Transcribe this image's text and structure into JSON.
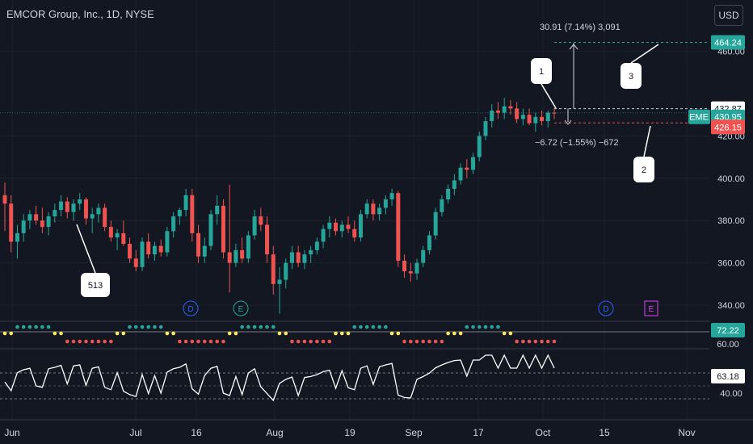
{
  "header": {
    "title": "EMCOR Group, Inc., 1D, NYSE",
    "currency": "USD"
  },
  "colors": {
    "up": "#26a69a",
    "down": "#ef5350",
    "bg": "#131722",
    "grid": "#1e222d",
    "text": "#d1d4dc"
  },
  "chart_data": [
    {
      "type": "candlestick",
      "ylim": [
        332,
        468
      ],
      "y_ticks": [
        "460.00",
        "420.00",
        "400.00",
        "380.00",
        "360.00",
        "340.00"
      ],
      "x_ticks": [
        "Jun",
        "Jul",
        "16",
        "Aug",
        "19",
        "Sep",
        "17",
        "Oct",
        "15",
        "Nov"
      ],
      "symbol": "EME",
      "last_price": "430.95",
      "price_labels": {
        "upper": "464.24",
        "mid": "432.87",
        "lower": "426.15"
      },
      "measure_up": "30.91 (7.14%) 3,091",
      "measure_down": "−6.72 (−1.55%) −672",
      "callouts": [
        "1",
        "2",
        "3",
        "513"
      ],
      "event_markers": [
        "D",
        "E",
        "D",
        "E"
      ],
      "candles": [
        {
          "o": 392,
          "h": 398,
          "l": 375,
          "c": 388
        },
        {
          "o": 388,
          "h": 392,
          "l": 365,
          "c": 370
        },
        {
          "o": 370,
          "h": 378,
          "l": 362,
          "c": 374
        },
        {
          "o": 374,
          "h": 383,
          "l": 370,
          "c": 380
        },
        {
          "o": 380,
          "h": 385,
          "l": 376,
          "c": 383
        },
        {
          "o": 383,
          "h": 387,
          "l": 378,
          "c": 380
        },
        {
          "o": 380,
          "h": 386,
          "l": 374,
          "c": 377
        },
        {
          "o": 377,
          "h": 384,
          "l": 373,
          "c": 382
        },
        {
          "o": 382,
          "h": 388,
          "l": 379,
          "c": 385
        },
        {
          "o": 385,
          "h": 392,
          "l": 382,
          "c": 389
        },
        {
          "o": 389,
          "h": 391,
          "l": 381,
          "c": 384
        },
        {
          "o": 384,
          "h": 390,
          "l": 380,
          "c": 388
        },
        {
          "o": 388,
          "h": 393,
          "l": 385,
          "c": 390
        },
        {
          "o": 390,
          "h": 391,
          "l": 378,
          "c": 381
        },
        {
          "o": 381,
          "h": 386,
          "l": 374,
          "c": 383
        },
        {
          "o": 383,
          "h": 388,
          "l": 379,
          "c": 386
        },
        {
          "o": 386,
          "h": 388,
          "l": 375,
          "c": 377
        },
        {
          "o": 377,
          "h": 380,
          "l": 370,
          "c": 372
        },
        {
          "o": 372,
          "h": 376,
          "l": 366,
          "c": 374
        },
        {
          "o": 374,
          "h": 380,
          "l": 368,
          "c": 369
        },
        {
          "o": 369,
          "h": 372,
          "l": 360,
          "c": 362
        },
        {
          "o": 362,
          "h": 366,
          "l": 356,
          "c": 358
        },
        {
          "o": 358,
          "h": 372,
          "l": 356,
          "c": 370
        },
        {
          "o": 370,
          "h": 374,
          "l": 362,
          "c": 364
        },
        {
          "o": 364,
          "h": 370,
          "l": 361,
          "c": 368
        },
        {
          "o": 368,
          "h": 371,
          "l": 363,
          "c": 365
        },
        {
          "o": 365,
          "h": 377,
          "l": 363,
          "c": 375
        },
        {
          "o": 375,
          "h": 384,
          "l": 372,
          "c": 382
        },
        {
          "o": 382,
          "h": 386,
          "l": 378,
          "c": 385
        },
        {
          "o": 385,
          "h": 395,
          "l": 382,
          "c": 392
        },
        {
          "o": 392,
          "h": 395,
          "l": 370,
          "c": 374
        },
        {
          "o": 374,
          "h": 378,
          "l": 360,
          "c": 363
        },
        {
          "o": 363,
          "h": 372,
          "l": 360,
          "c": 368
        },
        {
          "o": 368,
          "h": 385,
          "l": 366,
          "c": 383
        },
        {
          "o": 383,
          "h": 392,
          "l": 378,
          "c": 387
        },
        {
          "o": 387,
          "h": 390,
          "l": 362,
          "c": 365
        },
        {
          "o": 365,
          "h": 397,
          "l": 346,
          "c": 360
        },
        {
          "o": 360,
          "h": 369,
          "l": 358,
          "c": 366
        },
        {
          "o": 366,
          "h": 372,
          "l": 360,
          "c": 362
        },
        {
          "o": 362,
          "h": 375,
          "l": 360,
          "c": 373
        },
        {
          "o": 373,
          "h": 385,
          "l": 371,
          "c": 382
        },
        {
          "o": 382,
          "h": 386,
          "l": 375,
          "c": 378
        },
        {
          "o": 378,
          "h": 382,
          "l": 360,
          "c": 364
        },
        {
          "o": 364,
          "h": 368,
          "l": 345,
          "c": 350
        },
        {
          "o": 350,
          "h": 358,
          "l": 336,
          "c": 352
        },
        {
          "o": 352,
          "h": 362,
          "l": 348,
          "c": 360
        },
        {
          "o": 360,
          "h": 368,
          "l": 357,
          "c": 365
        },
        {
          "o": 365,
          "h": 368,
          "l": 358,
          "c": 360
        },
        {
          "o": 360,
          "h": 366,
          "l": 357,
          "c": 364
        },
        {
          "o": 364,
          "h": 368,
          "l": 360,
          "c": 366
        },
        {
          "o": 366,
          "h": 372,
          "l": 364,
          "c": 370
        },
        {
          "o": 370,
          "h": 378,
          "l": 367,
          "c": 376
        },
        {
          "o": 376,
          "h": 382,
          "l": 372,
          "c": 379
        },
        {
          "o": 379,
          "h": 381,
          "l": 373,
          "c": 375
        },
        {
          "o": 375,
          "h": 380,
          "l": 372,
          "c": 378
        },
        {
          "o": 378,
          "h": 382,
          "l": 374,
          "c": 376
        },
        {
          "o": 376,
          "h": 380,
          "l": 370,
          "c": 372
        },
        {
          "o": 372,
          "h": 385,
          "l": 370,
          "c": 383
        },
        {
          "o": 383,
          "h": 390,
          "l": 381,
          "c": 388
        },
        {
          "o": 388,
          "h": 390,
          "l": 380,
          "c": 383
        },
        {
          "o": 383,
          "h": 388,
          "l": 380,
          "c": 386
        },
        {
          "o": 386,
          "h": 392,
          "l": 383,
          "c": 390
        },
        {
          "o": 390,
          "h": 395,
          "l": 387,
          "c": 393
        },
        {
          "o": 393,
          "h": 394,
          "l": 358,
          "c": 361
        },
        {
          "o": 361,
          "h": 364,
          "l": 353,
          "c": 356
        },
        {
          "o": 356,
          "h": 360,
          "l": 351,
          "c": 355
        },
        {
          "o": 355,
          "h": 362,
          "l": 352,
          "c": 360
        },
        {
          "o": 360,
          "h": 368,
          "l": 358,
          "c": 366
        },
        {
          "o": 366,
          "h": 375,
          "l": 364,
          "c": 373
        },
        {
          "o": 373,
          "h": 386,
          "l": 371,
          "c": 384
        },
        {
          "o": 384,
          "h": 392,
          "l": 382,
          "c": 390
        },
        {
          "o": 390,
          "h": 397,
          "l": 388,
          "c": 395
        },
        {
          "o": 395,
          "h": 402,
          "l": 392,
          "c": 399
        },
        {
          "o": 399,
          "h": 407,
          "l": 397,
          "c": 405
        },
        {
          "o": 405,
          "h": 409,
          "l": 400,
          "c": 404
        },
        {
          "o": 404,
          "h": 412,
          "l": 402,
          "c": 410
        },
        {
          "o": 410,
          "h": 422,
          "l": 408,
          "c": 420
        },
        {
          "o": 420,
          "h": 429,
          "l": 418,
          "c": 427
        },
        {
          "o": 427,
          "h": 435,
          "l": 424,
          "c": 432
        },
        {
          "o": 432,
          "h": 436,
          "l": 428,
          "c": 431
        },
        {
          "o": 431,
          "h": 438,
          "l": 428,
          "c": 434
        },
        {
          "o": 434,
          "h": 437,
          "l": 430,
          "c": 433
        },
        {
          "o": 433,
          "h": 436,
          "l": 426,
          "c": 428
        },
        {
          "o": 428,
          "h": 433,
          "l": 425,
          "c": 430
        },
        {
          "o": 430,
          "h": 433,
          "l": 425,
          "c": 426
        },
        {
          "o": 426,
          "h": 431,
          "l": 422,
          "c": 429
        },
        {
          "o": 429,
          "h": 432,
          "l": 425,
          "c": 427
        },
        {
          "o": 427,
          "h": 432,
          "l": 424,
          "c": 431
        },
        {
          "o": 431,
          "h": 433,
          "l": 428,
          "c": 430.95
        }
      ],
      "indicator1": {
        "label": "72.22",
        "level": "60.00"
      },
      "rsi": {
        "label": "63.18",
        "level": "40.00"
      }
    }
  ]
}
